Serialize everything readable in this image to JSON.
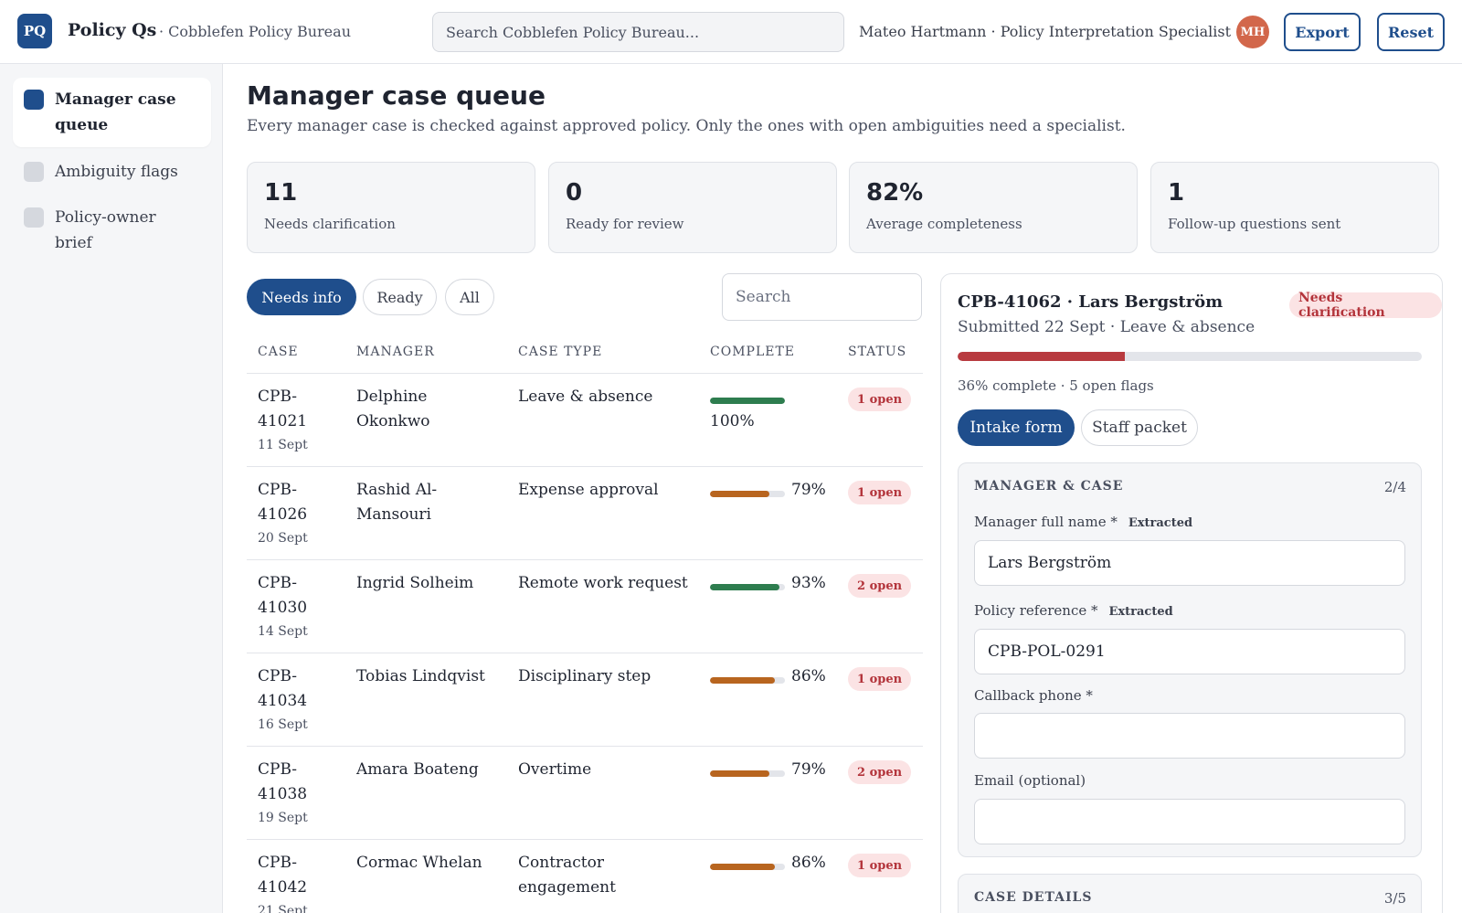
{
  "topbar": {
    "logo": "PQ",
    "app_name": "Policy Qs",
    "org_name": "· Cobblefen Policy Bureau",
    "search_placeholder": "Search Cobblefen Policy Bureau...",
    "user_line": "Mateo Hartmann · Policy Interpretation Specialist",
    "avatar_initials": "MH",
    "export_label": "Export",
    "reset_label": "Reset"
  },
  "sidebar": {
    "items": [
      {
        "label": "Manager case queue",
        "active": true
      },
      {
        "label": "Ambiguity flags",
        "active": false
      },
      {
        "label": "Policy-owner brief",
        "active": false
      }
    ]
  },
  "main": {
    "title": "Manager case queue",
    "subtitle": "Every manager case is checked against approved policy. Only the ones with open ambiguities need a specialist.",
    "stats": [
      {
        "value": "11",
        "label": "Needs clarification"
      },
      {
        "value": "0",
        "label": "Ready for review"
      },
      {
        "value": "82%",
        "label": "Average completeness"
      },
      {
        "value": "1",
        "label": "Follow-up questions sent"
      }
    ],
    "filters": [
      {
        "label": "Needs info",
        "active": true
      },
      {
        "label": "Ready",
        "active": false
      },
      {
        "label": "All",
        "active": false
      }
    ],
    "table_search_placeholder": "Search"
  },
  "table": {
    "headers": [
      "Case",
      "Manager",
      "Case type",
      "Complete",
      "Status"
    ],
    "rows": [
      {
        "case": "CPB-41021",
        "date": "11 Sept",
        "manager": "Delphine Okonkwo",
        "type": "Leave & absence",
        "complete": 100,
        "complete_label": "100%",
        "status": "1 open"
      },
      {
        "case": "CPB-41026",
        "date": "20 Sept",
        "manager": "Rashid Al-Mansouri",
        "type": "Expense approval",
        "complete": 79,
        "complete_label": "79%",
        "status": "1 open"
      },
      {
        "case": "CPB-41030",
        "date": "14 Sept",
        "manager": "Ingrid Solheim",
        "type": "Remote work request",
        "complete": 93,
        "complete_label": "93%",
        "status": "2 open"
      },
      {
        "case": "CPB-41034",
        "date": "16 Sept",
        "manager": "Tobias Lindqvist",
        "type": "Disciplinary step",
        "complete": 86,
        "complete_label": "86%",
        "status": "1 open"
      },
      {
        "case": "CPB-41038",
        "date": "19 Sept",
        "manager": "Amara Boateng",
        "type": "Overtime",
        "complete": 79,
        "complete_label": "79%",
        "status": "2 open"
      },
      {
        "case": "CPB-41042",
        "date": "21 Sept",
        "manager": "Cormac Whelan",
        "type": "Contractor engagement",
        "complete": 86,
        "complete_label": "86%",
        "status": "1 open"
      }
    ]
  },
  "colors": {
    "accent": "#1f4e8c",
    "bar_complete": "#2e7d4f",
    "bar_partial": "#b8651f",
    "bar_low": "#b83a3f",
    "badge_bg": "#fbe3e4",
    "badge_text": "#b3343b"
  },
  "detail": {
    "title": "CPB-41062 · Lars Bergström",
    "badge": "Needs clarification",
    "subtitle": "Submitted 22 Sept · Leave & absence",
    "progress": 36,
    "progress_text": "36% complete · 5 open flags",
    "tabs": [
      {
        "label": "Intake form",
        "active": true
      },
      {
        "label": "Staff packet",
        "active": false
      }
    ],
    "section1": {
      "heading": "MANAGER & CASE",
      "count": "2/4",
      "fields": [
        {
          "label": "Manager full name *",
          "tag": "Extracted",
          "value": "Lars Bergström"
        },
        {
          "label": "Policy reference *",
          "tag": "Extracted",
          "value": "CPB-POL-0291"
        },
        {
          "label": "Callback phone *",
          "tag": "",
          "value": ""
        },
        {
          "label": "Email (optional)",
          "tag": "",
          "value": ""
        }
      ]
    },
    "section2": {
      "heading": "CASE DETAILS",
      "count": "3/5"
    }
  }
}
